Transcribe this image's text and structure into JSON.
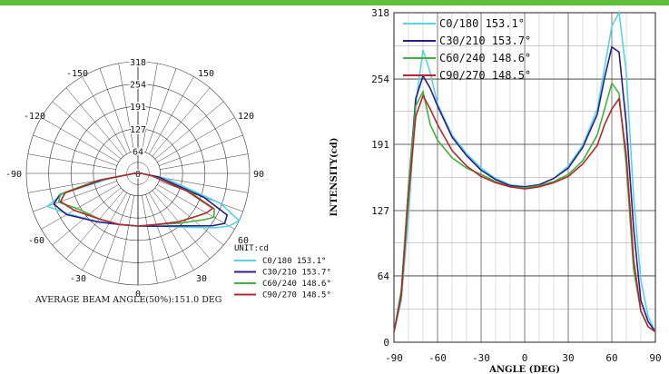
{
  "chart_data": [
    {
      "type": "line",
      "subtype": "polar",
      "radial_ticks": [
        "0",
        "64",
        "127",
        "191",
        "254",
        "318"
      ],
      "angle_labels": [
        "-150",
        "150",
        "-120",
        "120",
        "-90",
        "90",
        "-60",
        "60",
        "-30",
        "30",
        "0"
      ],
      "unit_label": "UNIT:cd",
      "footer_text": "AVERAGE BEAM ANGLE(50%):151.0 DEG",
      "rmax": 318,
      "legend_position": "bottom-right",
      "series": [
        {
          "name": "C0/180 153.1°",
          "color": "#57d4e0",
          "angles": [
            -90,
            -80,
            -75,
            -70,
            -60,
            -40,
            -20,
            0,
            20,
            40,
            55,
            60,
            65,
            70,
            80,
            90
          ],
          "values": [
            10,
            80,
            220,
            275,
            230,
            180,
            155,
            150,
            160,
            200,
            270,
            300,
            318,
            250,
            80,
            10
          ]
        },
        {
          "name": "C30/210 153.7°",
          "color": "#2a1f8a",
          "angles": [
            -90,
            -80,
            -75,
            -70,
            -60,
            -40,
            -20,
            0,
            20,
            40,
            55,
            60,
            65,
            70,
            80,
            90
          ],
          "values": [
            10,
            100,
            230,
            255,
            235,
            180,
            155,
            150,
            160,
            195,
            260,
            285,
            280,
            200,
            60,
            10
          ]
        },
        {
          "name": "C60/240 148.6°",
          "color": "#42b13e",
          "angles": [
            -90,
            -80,
            -75,
            -70,
            -60,
            -40,
            -20,
            0,
            20,
            40,
            55,
            60,
            65,
            70,
            80,
            90
          ],
          "values": [
            10,
            120,
            230,
            240,
            200,
            170,
            155,
            150,
            155,
            185,
            230,
            250,
            240,
            160,
            40,
            10
          ]
        },
        {
          "name": "C90/270 148.5°",
          "color": "#b3282d",
          "angles": [
            -90,
            -80,
            -75,
            -70,
            -60,
            -40,
            -20,
            0,
            20,
            40,
            55,
            60,
            65,
            70,
            80,
            90
          ],
          "values": [
            10,
            110,
            215,
            235,
            210,
            170,
            155,
            150,
            155,
            180,
            210,
            225,
            235,
            150,
            40,
            10
          ]
        }
      ]
    },
    {
      "type": "line",
      "xlabel": "ANGLE (DEG)",
      "ylabel": "INTENSITY(cd)",
      "xlim": [
        -90,
        90
      ],
      "ylim": [
        0,
        318
      ],
      "xticks": [
        "-90",
        "-60",
        "-30",
        "0",
        "30",
        "60",
        "90"
      ],
      "yticks": [
        "0",
        "64",
        "127",
        "191",
        "254",
        "318"
      ],
      "legend_position": "top-left",
      "series": [
        {
          "name": "C0/180 153.1°",
          "color": "#57d4e0",
          "x": [
            -90,
            -85,
            -80,
            -75,
            -70,
            -65,
            -60,
            -50,
            -40,
            -30,
            -20,
            -10,
            0,
            10,
            20,
            30,
            40,
            50,
            55,
            60,
            65,
            70,
            75,
            80,
            85,
            90
          ],
          "y": [
            10,
            40,
            120,
            230,
            282,
            260,
            230,
            200,
            182,
            168,
            158,
            152,
            150,
            152,
            158,
            170,
            190,
            225,
            265,
            305,
            318,
            260,
            140,
            60,
            25,
            10
          ]
        },
        {
          "name": "C30/210 153.7°",
          "color": "#2a1f8a",
          "x": [
            -90,
            -85,
            -80,
            -75,
            -70,
            -65,
            -60,
            -50,
            -40,
            -30,
            -20,
            -10,
            0,
            10,
            20,
            30,
            40,
            50,
            55,
            60,
            65,
            70,
            75,
            80,
            85,
            90
          ],
          "y": [
            10,
            45,
            150,
            235,
            257,
            245,
            228,
            198,
            180,
            166,
            157,
            151,
            150,
            152,
            158,
            168,
            188,
            220,
            255,
            285,
            280,
            210,
            110,
            40,
            20,
            10
          ]
        },
        {
          "name": "C60/240 148.6°",
          "color": "#42b13e",
          "x": [
            -90,
            -85,
            -80,
            -75,
            -70,
            -65,
            -60,
            -50,
            -40,
            -30,
            -20,
            -10,
            0,
            10,
            20,
            30,
            40,
            50,
            55,
            60,
            65,
            70,
            75,
            80,
            85,
            90
          ],
          "y": [
            10,
            50,
            150,
            228,
            242,
            210,
            195,
            178,
            168,
            162,
            155,
            150,
            149,
            151,
            155,
            162,
            175,
            200,
            225,
            250,
            240,
            170,
            70,
            30,
            15,
            10
          ]
        },
        {
          "name": "C90/270 148.5°",
          "color": "#b3282d",
          "x": [
            -90,
            -85,
            -80,
            -75,
            -70,
            -65,
            -60,
            -50,
            -40,
            -30,
            -20,
            -10,
            0,
            10,
            20,
            30,
            40,
            50,
            55,
            60,
            65,
            70,
            75,
            80,
            85,
            90
          ],
          "y": [
            10,
            45,
            140,
            218,
            238,
            225,
            210,
            185,
            170,
            160,
            154,
            150,
            148,
            150,
            154,
            160,
            172,
            190,
            210,
            225,
            235,
            180,
            80,
            30,
            15,
            10
          ]
        }
      ]
    }
  ]
}
